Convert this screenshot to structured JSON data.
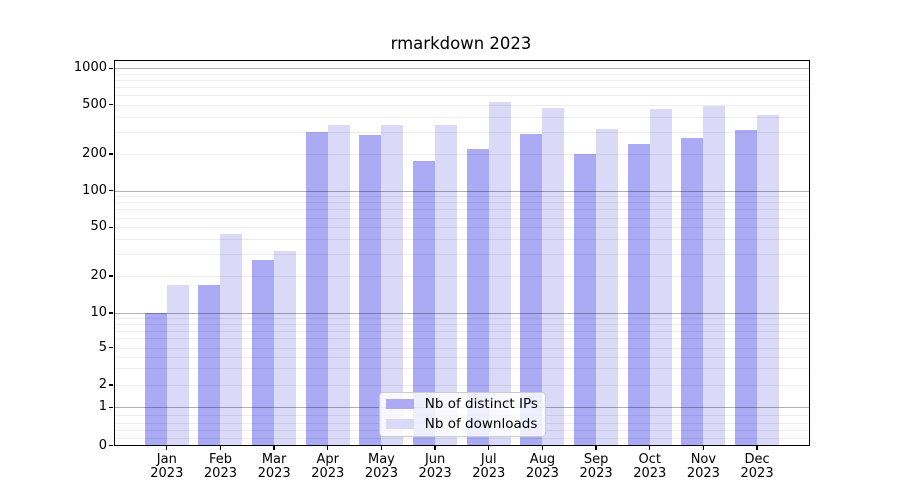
{
  "title": "rmarkdown 2023",
  "y_axis": {
    "tick_labels": [
      "1000",
      "500",
      "200",
      "100",
      "50",
      "20",
      "10",
      "5",
      "2",
      "1",
      "0"
    ],
    "tick_values": [
      1000,
      500,
      200,
      100,
      50,
      20,
      10,
      5,
      2,
      1,
      0
    ]
  },
  "x_axis": {
    "months": [
      "Jan",
      "Feb",
      "Mar",
      "Apr",
      "May",
      "Jun",
      "Jul",
      "Aug",
      "Sep",
      "Oct",
      "Nov",
      "Dec"
    ],
    "year": "2023"
  },
  "legend": {
    "items": [
      {
        "label": "Nb of distinct IPs"
      },
      {
        "label": "Nb of downloads"
      }
    ]
  },
  "chart_data": {
    "type": "bar",
    "title": "rmarkdown 2023",
    "categories": [
      "Jan 2023",
      "Feb 2023",
      "Mar 2023",
      "Apr 2023",
      "May 2023",
      "Jun 2023",
      "Jul 2023",
      "Aug 2023",
      "Sep 2023",
      "Oct 2023",
      "Nov 2023",
      "Dec 2023"
    ],
    "series": [
      {
        "name": "Nb of distinct IPs",
        "color": "#aaaaf5",
        "values": [
          10,
          17,
          27,
          300,
          285,
          175,
          220,
          290,
          200,
          240,
          270,
          310
        ]
      },
      {
        "name": "Nb of downloads",
        "color": "#dadaf8",
        "values": [
          17,
          44,
          32,
          340,
          345,
          340,
          525,
          470,
          320,
          460,
          485,
          415
        ]
      }
    ],
    "yscale": "log-like (compressed below 10, linear 0-1)",
    "ylim": [
      0,
      1000
    ],
    "yticks": [
      0,
      1,
      2,
      5,
      10,
      20,
      50,
      100,
      200,
      500,
      1000
    ],
    "grid": true,
    "grid_major_at": [
      1,
      10,
      100,
      1000
    ],
    "legend_position": "lower center inside plot",
    "colors": {
      "grid_major": "#b0b0b0",
      "grid_minor": "#e9e9e9",
      "spine": "#000000",
      "background": "#ffffff"
    }
  }
}
